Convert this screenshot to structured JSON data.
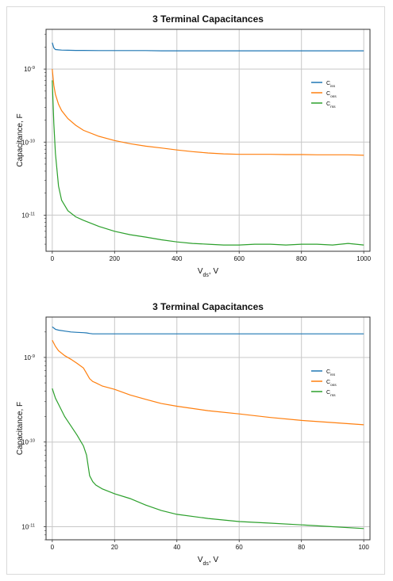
{
  "chart_data": [
    {
      "type": "line",
      "title": "3 Terminal Capacitances",
      "xlabel": "V",
      "xlabel_sub": "ds",
      "xlabel_unit": ", V",
      "ylabel": "Capacitance, F",
      "xlim": [
        -20,
        1020
      ],
      "ylim": [
        3.2e-12,
        3.5e-09
      ],
      "yscale": "log",
      "grid": true,
      "legend_position": "right",
      "xticks": [
        "0",
        "200",
        "400",
        "600",
        "800",
        "1000"
      ],
      "xtick_values": [
        0,
        200,
        400,
        600,
        800,
        1000
      ],
      "yticks": [
        "10",
        "10",
        "10"
      ],
      "ytick_exps": [
        "-9",
        "-10",
        "-11"
      ],
      "ytick_values": [
        1e-09,
        1e-10,
        1e-11
      ],
      "x": [
        0,
        5,
        10,
        20,
        30,
        50,
        75,
        100,
        150,
        200,
        250,
        300,
        350,
        400,
        450,
        500,
        550,
        600,
        650,
        700,
        750,
        800,
        850,
        900,
        950,
        1000
      ],
      "series": [
        {
          "name": "C",
          "sub": "iss",
          "color": "#1f77b4",
          "values": [
            2.3e-09,
            1.95e-09,
            1.85e-09,
            1.83e-09,
            1.82e-09,
            1.81e-09,
            1.8e-09,
            1.8e-09,
            1.79e-09,
            1.79e-09,
            1.79e-09,
            1.79e-09,
            1.78e-09,
            1.78e-09,
            1.78e-09,
            1.78e-09,
            1.78e-09,
            1.78e-09,
            1.78e-09,
            1.78e-09,
            1.78e-09,
            1.78e-09,
            1.78e-09,
            1.78e-09,
            1.78e-09,
            1.78e-09
          ]
        },
        {
          "name": "C",
          "sub": "oss",
          "color": "#ff7f0e",
          "values": [
            1e-09,
            6e-10,
            4.5e-10,
            3.3e-10,
            2.7e-10,
            2.1e-10,
            1.7e-10,
            1.45e-10,
            1.2e-10,
            1.05e-10,
            9.5e-11,
            8.8e-11,
            8.3e-11,
            7.8e-11,
            7.4e-11,
            7.1e-11,
            6.9e-11,
            6.8e-11,
            6.8e-11,
            6.8e-11,
            6.75e-11,
            6.75e-11,
            6.7e-11,
            6.7e-11,
            6.7e-11,
            6.6e-11
          ]
        },
        {
          "name": "C",
          "sub": "rss",
          "color": "#2ca02c",
          "values": [
            7e-10,
            1.8e-10,
            7e-11,
            2.5e-11,
            1.6e-11,
            1.15e-11,
            9.5e-12,
            8.5e-12,
            7e-12,
            6e-12,
            5.4e-12,
            5e-12,
            4.6e-12,
            4.3e-12,
            4.1e-12,
            4e-12,
            3.9e-12,
            3.9e-12,
            4e-12,
            4e-12,
            3.9e-12,
            4e-12,
            4e-12,
            3.9e-12,
            4.1e-12,
            3.9e-12
          ]
        }
      ]
    },
    {
      "type": "line",
      "title": "3 Terminal Capacitances",
      "xlabel": "V",
      "xlabel_sub": "ds",
      "xlabel_unit": ", V",
      "ylabel": "Capacitance, F",
      "xlim": [
        -2,
        102
      ],
      "ylim": [
        7e-12,
        3e-09
      ],
      "yscale": "log",
      "grid": true,
      "legend_position": "right",
      "xticks": [
        "0",
        "20",
        "40",
        "60",
        "80",
        "100"
      ],
      "xtick_values": [
        0,
        20,
        40,
        60,
        80,
        100
      ],
      "yticks": [
        "10",
        "10",
        "10"
      ],
      "ytick_exps": [
        "-9",
        "-10",
        "-11"
      ],
      "ytick_values": [
        1e-09,
        1e-10,
        1e-11
      ],
      "x": [
        0,
        1,
        2,
        4,
        6,
        8,
        10,
        11,
        12,
        13,
        14,
        16,
        20,
        25,
        30,
        35,
        40,
        50,
        60,
        70,
        80,
        90,
        100
      ],
      "series": [
        {
          "name": "C",
          "sub": "iss",
          "color": "#1f77b4",
          "values": [
            2.3e-09,
            2.15e-09,
            2.1e-09,
            2.05e-09,
            2e-09,
            1.98e-09,
            1.96e-09,
            1.95e-09,
            1.92e-09,
            1.9e-09,
            1.9e-09,
            1.9e-09,
            1.9e-09,
            1.9e-09,
            1.9e-09,
            1.9e-09,
            1.9e-09,
            1.9e-09,
            1.9e-09,
            1.9e-09,
            1.9e-09,
            1.9e-09,
            1.9e-09
          ]
        },
        {
          "name": "C",
          "sub": "oss",
          "color": "#ff7f0e",
          "values": [
            1.6e-09,
            1.35e-09,
            1.2e-09,
            1.05e-09,
            9.5e-10,
            8.5e-10,
            7.5e-10,
            6.5e-10,
            5.6e-10,
            5.2e-10,
            5e-10,
            4.6e-10,
            4.2e-10,
            3.6e-10,
            3.2e-10,
            2.85e-10,
            2.65e-10,
            2.35e-10,
            2.15e-10,
            1.95e-10,
            1.8e-10,
            1.7e-10,
            1.6e-10
          ]
        },
        {
          "name": "C",
          "sub": "rss",
          "color": "#2ca02c",
          "values": [
            4.3e-10,
            3.3e-10,
            2.8e-10,
            2e-10,
            1.55e-10,
            1.2e-10,
            9e-11,
            7e-11,
            4e-11,
            3.4e-11,
            3.1e-11,
            2.8e-11,
            2.45e-11,
            2.15e-11,
            1.8e-11,
            1.55e-11,
            1.4e-11,
            1.25e-11,
            1.15e-11,
            1.1e-11,
            1.05e-11,
            1e-11,
            9.5e-12
          ]
        }
      ]
    }
  ]
}
